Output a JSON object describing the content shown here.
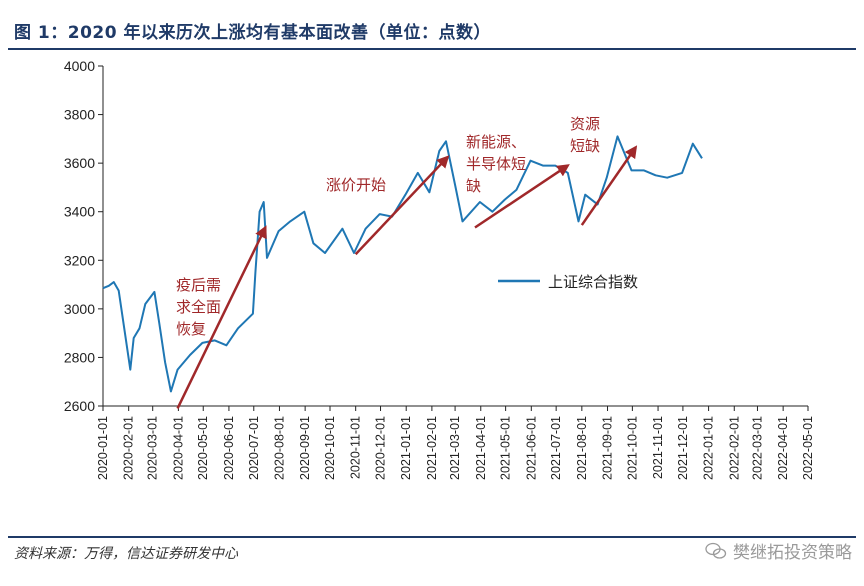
{
  "header": {
    "title": "图 1：2020 年以来历次上涨均有基本面改善（单位：点数）"
  },
  "footer": {
    "source": "资料来源：万得，信达证券研发中心",
    "watermark": "樊继拓投资策略"
  },
  "colors": {
    "line": "#1f77b4",
    "arrow": "#a0282a",
    "title": "#1f3a67"
  },
  "chart_data": {
    "type": "line",
    "title": "图 1：2020 年以来历次上涨均有基本面改善（单位：点数）",
    "ylim": [
      2600,
      4000
    ],
    "yticks": [
      2600,
      2800,
      3000,
      3200,
      3400,
      3600,
      3800,
      4000
    ],
    "x_tick_labels": [
      "2020-01-01",
      "2020-02-01",
      "2020-03-01",
      "2020-04-01",
      "2020-05-01",
      "2020-06-01",
      "2020-07-01",
      "2020-08-01",
      "2020-09-01",
      "2020-10-01",
      "2020-11-01",
      "2020-12-01",
      "2021-01-01",
      "2021-02-01",
      "2021-03-01",
      "2021-04-01",
      "2021-05-01",
      "2021-06-01",
      "2021-07-01",
      "2021-08-01",
      "2021-09-01",
      "2021-10-01",
      "2021-11-01",
      "2021-12-01",
      "2022-01-01",
      "2022-02-01",
      "2022-03-01",
      "2022-04-01",
      "2022-05-01"
    ],
    "xlabel": "",
    "ylabel": "",
    "legend": {
      "position": "center-right"
    },
    "grid": false,
    "series": [
      {
        "name": "上证综合指数",
        "points": [
          [
            "2020-01-01",
            3085
          ],
          [
            "2020-01-08",
            3095
          ],
          [
            "2020-01-14",
            3110
          ],
          [
            "2020-01-20",
            3075
          ],
          [
            "2020-02-03",
            2750
          ],
          [
            "2020-02-07",
            2880
          ],
          [
            "2020-02-14",
            2920
          ],
          [
            "2020-02-21",
            3020
          ],
          [
            "2020-03-03",
            3070
          ],
          [
            "2020-03-09",
            2940
          ],
          [
            "2020-03-16",
            2780
          ],
          [
            "2020-03-23",
            2660
          ],
          [
            "2020-03-31",
            2750
          ],
          [
            "2020-04-15",
            2810
          ],
          [
            "2020-04-30",
            2860
          ],
          [
            "2020-05-15",
            2870
          ],
          [
            "2020-05-29",
            2850
          ],
          [
            "2020-06-12",
            2920
          ],
          [
            "2020-06-30",
            2980
          ],
          [
            "2020-07-03",
            3150
          ],
          [
            "2020-07-08",
            3400
          ],
          [
            "2020-07-13",
            3440
          ],
          [
            "2020-07-17",
            3210
          ],
          [
            "2020-07-31",
            3320
          ],
          [
            "2020-08-14",
            3360
          ],
          [
            "2020-08-31",
            3400
          ],
          [
            "2020-09-11",
            3270
          ],
          [
            "2020-09-25",
            3230
          ],
          [
            "2020-10-16",
            3330
          ],
          [
            "2020-10-30",
            3230
          ],
          [
            "2020-11-13",
            3330
          ],
          [
            "2020-11-30",
            3390
          ],
          [
            "2020-12-15",
            3380
          ],
          [
            "2020-12-31",
            3470
          ],
          [
            "2021-01-15",
            3560
          ],
          [
            "2021-01-29",
            3480
          ],
          [
            "2021-02-10",
            3650
          ],
          [
            "2021-02-18",
            3690
          ],
          [
            "2021-03-01",
            3510
          ],
          [
            "2021-03-10",
            3360
          ],
          [
            "2021-03-31",
            3440
          ],
          [
            "2021-04-15",
            3400
          ],
          [
            "2021-04-30",
            3450
          ],
          [
            "2021-05-14",
            3490
          ],
          [
            "2021-05-31",
            3610
          ],
          [
            "2021-06-15",
            3590
          ],
          [
            "2021-06-30",
            3590
          ],
          [
            "2021-07-15",
            3560
          ],
          [
            "2021-07-28",
            3360
          ],
          [
            "2021-08-05",
            3470
          ],
          [
            "2021-08-20",
            3430
          ],
          [
            "2021-08-31",
            3540
          ],
          [
            "2021-09-13",
            3710
          ],
          [
            "2021-09-30",
            3570
          ],
          [
            "2021-10-15",
            3570
          ],
          [
            "2021-10-29",
            3550
          ],
          [
            "2021-11-12",
            3540
          ],
          [
            "2021-11-30",
            3560
          ],
          [
            "2021-12-13",
            3680
          ],
          [
            "2021-12-24",
            3620
          ]
        ]
      }
    ],
    "annotations": [
      {
        "lines": [
          "疫后需",
          "求全面",
          "恢复"
        ]
      },
      {
        "lines": [
          "涨价开始"
        ]
      },
      {
        "lines": [
          "新能源、",
          "半导体短",
          "缺"
        ]
      },
      {
        "lines": [
          "资源",
          "短缺"
        ]
      }
    ],
    "arrows": [
      {
        "from": [
          "2020-03-31",
          2590
        ],
        "to": [
          "2020-07-15",
          3335
        ]
      },
      {
        "from": [
          "2020-11-01",
          3225
        ],
        "to": [
          "2021-02-20",
          3625
        ]
      },
      {
        "from": [
          "2021-03-25",
          3335
        ],
        "to": [
          "2021-07-15",
          3590
        ]
      },
      {
        "from": [
          "2021-08-01",
          3345
        ],
        "to": [
          "2021-10-05",
          3665
        ]
      }
    ]
  }
}
